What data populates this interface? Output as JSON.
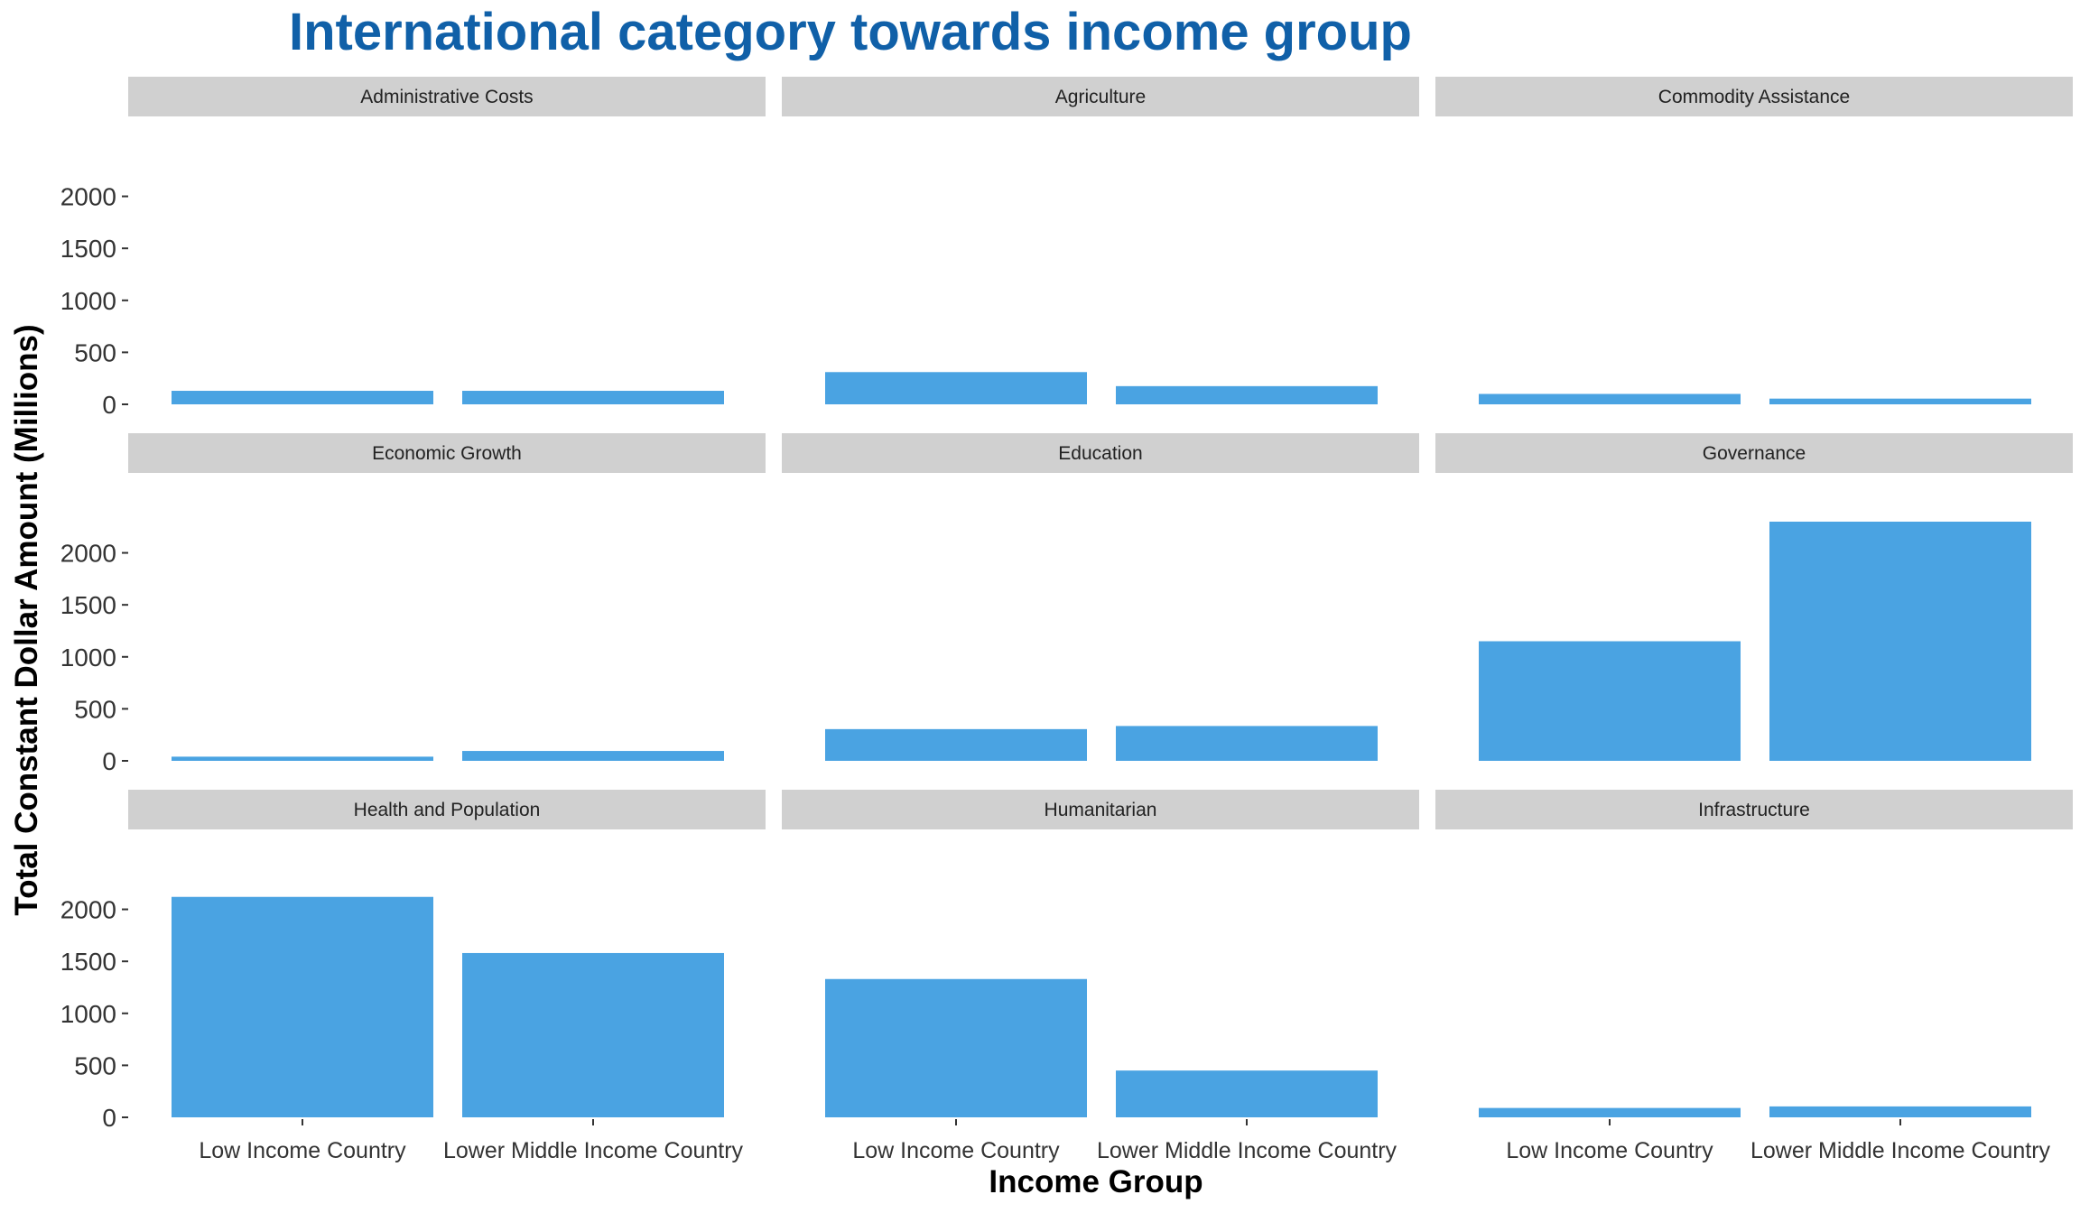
{
  "chart_data": {
    "type": "bar",
    "title": "International category towards income group",
    "xlabel": "Income Group",
    "ylabel": "Total Constant Dollar Amount (Millions)",
    "categories": [
      "Low Income Country",
      "Lower Middle Income Country"
    ],
    "ylim": [
      0,
      2300
    ],
    "yticks": [
      0,
      500,
      1000,
      1500,
      2000
    ],
    "bar_color": "#4AA3E2",
    "strip_color": "#D0D0D0",
    "grid": false,
    "legend": "none",
    "facets": [
      {
        "name": "Administrative Costs",
        "values": [
          130,
          130
        ]
      },
      {
        "name": "Agriculture",
        "values": [
          310,
          175
        ]
      },
      {
        "name": "Commodity Assistance",
        "values": [
          100,
          55
        ]
      },
      {
        "name": "Economic Growth",
        "values": [
          40,
          95
        ]
      },
      {
        "name": "Education",
        "values": [
          305,
          335
        ]
      },
      {
        "name": "Governance",
        "values": [
          1150,
          2300
        ]
      },
      {
        "name": "Health and Population",
        "values": [
          2120,
          1580
        ]
      },
      {
        "name": "Humanitarian",
        "values": [
          1330,
          450
        ]
      },
      {
        "name": "Infrastructure",
        "values": [
          90,
          105
        ]
      }
    ]
  }
}
